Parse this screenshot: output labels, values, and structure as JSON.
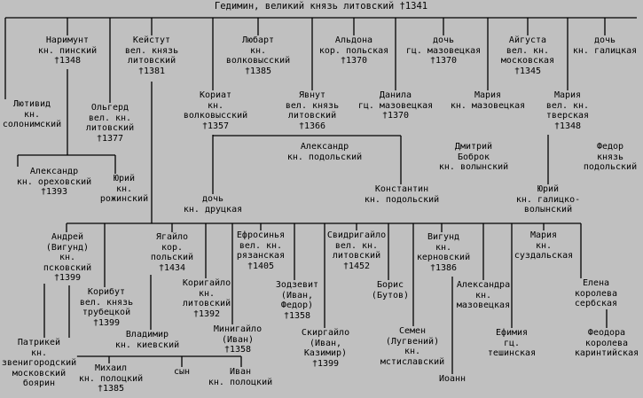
{
  "colors": {
    "background": "#c0c0c0",
    "text": "#000000",
    "lines": "#000000"
  },
  "persons": {
    "gedimin": {
      "lines": [
        "Гедимин, великий князь литовский †1341"
      ]
    },
    "narimunt": {
      "lines": [
        "Наримунт",
        "кн. пинский",
        "†1348"
      ]
    },
    "keistut": {
      "lines": [
        "Кейстут",
        "вел. князь",
        "литовский",
        "†1381"
      ]
    },
    "lubart": {
      "lines": [
        "Любарт",
        "кн.",
        "волковысский",
        "†1385"
      ]
    },
    "aldona": {
      "lines": [
        "Альдона",
        "кор. польская",
        "†1370"
      ]
    },
    "doch_mazovetskaya": {
      "lines": [
        "дочь",
        "гц. мазовецкая",
        "†1370"
      ]
    },
    "aigusta": {
      "lines": [
        "Айгуста",
        "вел. кн.",
        "московская",
        "†1345"
      ]
    },
    "doch_galitskaya": {
      "lines": [
        "дочь",
        "кн. галицкая"
      ]
    },
    "lutivid": {
      "lines": [
        "Лютивид",
        "кн.",
        "солонимский"
      ]
    },
    "olgerd": {
      "lines": [
        "Ольгерд",
        "вел. кн.",
        "литовский",
        "†1377"
      ]
    },
    "koriat": {
      "lines": [
        "Кориат",
        "кн.",
        "волковысский",
        "†1357"
      ]
    },
    "yavnut": {
      "lines": [
        "Явнут",
        "вел. князь",
        "литовский",
        "†1366"
      ]
    },
    "danila": {
      "lines": [
        "Данила",
        "гц. мазовецкая",
        "†1370"
      ]
    },
    "maria_mazovetskaya": {
      "lines": [
        "Мария",
        "кн. мазовецкая"
      ]
    },
    "maria_tverskaya": {
      "lines": [
        "Мария",
        "вел. кн.",
        "тверская",
        "†1348"
      ]
    },
    "aleksandr_orekhovsky": {
      "lines": [
        "Александр",
        "кн. ореховский",
        "†1393"
      ]
    },
    "yuri_rozhinsky": {
      "lines": [
        "Юрий",
        "кн.",
        "рожинский"
      ]
    },
    "aleksandr_podolsky": {
      "lines": [
        "Александр",
        "кн. подольский"
      ]
    },
    "dmitry_bobrok": {
      "lines": [
        "Дмитрий",
        "Боброк",
        "кн. волынский"
      ]
    },
    "fedor_podolsky": {
      "lines": [
        "Федор",
        "князь",
        "подольский"
      ]
    },
    "doch_drutskaya": {
      "lines": [
        "дочь",
        "кн. друцкая"
      ]
    },
    "konstantin": {
      "lines": [
        "Константин",
        "кн. подольский"
      ]
    },
    "yuri_galitsko": {
      "lines": [
        "Юрий",
        "кн. галицко-",
        "волынский"
      ]
    },
    "andrei": {
      "lines": [
        "Андрей",
        "(Вигунд)",
        "кн.",
        "псковский",
        "†1399"
      ]
    },
    "yagailo": {
      "lines": [
        "Ягайло",
        "кор.",
        "польский",
        "†1434"
      ]
    },
    "efrosinya": {
      "lines": [
        "Ефросинья",
        "вел. кн.",
        "рязанская",
        "†1405"
      ]
    },
    "svidrigailo": {
      "lines": [
        "Свидригайло",
        "вел. кн.",
        "литовский",
        "†1452"
      ]
    },
    "vigund": {
      "lines": [
        "Вигунд",
        "кн.",
        "керновский",
        "†1386"
      ]
    },
    "maria_suzdalskaya": {
      "lines": [
        "Мария",
        "кн.",
        "суздальская"
      ]
    },
    "koribut": {
      "lines": [
        "Корибут",
        "вел. князь",
        "трубецкой",
        "†1399"
      ]
    },
    "korigailo": {
      "lines": [
        "Коригайло",
        "кн.",
        "литовский",
        "†1392"
      ]
    },
    "zodzevit": {
      "lines": [
        "Зодзевит",
        "(Иван,",
        "Федор)",
        "†1358"
      ]
    },
    "boris": {
      "lines": [
        "Борис",
        "(Бутов)"
      ]
    },
    "aleksandra": {
      "lines": [
        "Александра",
        "кн.",
        "мазовецкая"
      ]
    },
    "elena": {
      "lines": [
        "Елена",
        "королева",
        "сербская"
      ]
    },
    "minigailo": {
      "lines": [
        "Минигайло",
        "(Иван)",
        "†1358"
      ]
    },
    "skirgailo": {
      "lines": [
        "Скиргайло",
        "(Иван,",
        "Казимир)",
        "†1399"
      ]
    },
    "semen": {
      "lines": [
        "Семен",
        "(Лугвений)",
        "кн.",
        "мстиславский"
      ]
    },
    "efimia": {
      "lines": [
        "Ефимия",
        "гц.",
        "тешинская"
      ]
    },
    "feodora": {
      "lines": [
        "Феодора",
        "королева",
        "каринтийская"
      ]
    },
    "patrikei": {
      "lines": [
        "Патрикей",
        "кн.",
        "звенигородский",
        "московский",
        "боярин"
      ]
    },
    "vladimir": {
      "lines": [
        "Владимир",
        "кн. киевский"
      ]
    },
    "mikhail": {
      "lines": [
        "Михаил",
        "кн. полоцкий",
        "†1385"
      ]
    },
    "syn": {
      "lines": [
        "сын"
      ]
    },
    "ivan": {
      "lines": [
        "Иван",
        "кн. полоцкий"
      ]
    },
    "ioann": {
      "lines": [
        "Иоанн"
      ]
    }
  }
}
